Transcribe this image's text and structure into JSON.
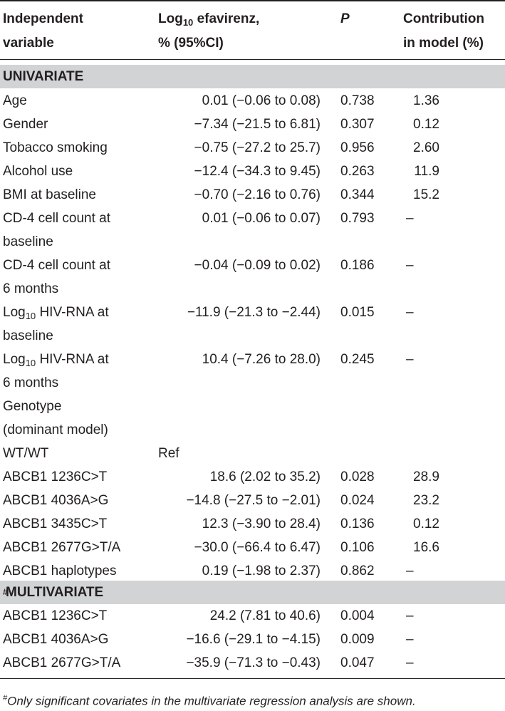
{
  "table": {
    "headers": {
      "col1": [
        "Independent",
        "variable"
      ],
      "col2_line1_base": "Log",
      "col2_line1_sub": "10",
      "col2_line1_rest": " efavirenz,",
      "col2_line2": "% (95%CI)",
      "col3": "P",
      "col4": [
        "Contribution",
        "in model (%)"
      ]
    },
    "sections": {
      "univariate": "UNIVARIATE",
      "multivariate": "MULTIVARIATE",
      "multivariate_mark": "#"
    },
    "univariate_rows": [
      {
        "v": [
          "Age"
        ],
        "est": "0.01 (−0.06 to 0.08)",
        "p": "0.738",
        "c": "1.36"
      },
      {
        "v": [
          "Gender"
        ],
        "est": "−7.34 (−21.5 to 6.81)",
        "p": "0.307",
        "c": "0.12"
      },
      {
        "v": [
          "Tobacco smoking"
        ],
        "est": "−0.75 (−27.2 to 25.7)",
        "p": "0.956",
        "c": "2.60"
      },
      {
        "v": [
          "Alcohol use"
        ],
        "est": "−12.4 (−34.3 to 9.45)",
        "p": "0.263",
        "c": "11.9"
      },
      {
        "v": [
          "BMI at baseline"
        ],
        "est": "−0.70 (−2.16 to 0.76)",
        "p": "0.344",
        "c": "15.2"
      },
      {
        "v": [
          "CD-4 cell count at",
          "baseline"
        ],
        "est": "0.01 (−0.06 to 0.07)",
        "p": "0.793",
        "c": "–"
      },
      {
        "v": [
          "CD-4 cell count at",
          "6 months"
        ],
        "est": "−0.04 (−0.09 to 0.02)",
        "p": "0.186",
        "c": "–"
      },
      {
        "v": [
          "Log10 HIV-RNA at",
          "baseline"
        ],
        "est": "−11.9 (−21.3 to −2.44)",
        "p": "0.015",
        "c": "–"
      },
      {
        "v": [
          "Log10 HIV-RNA at",
          "6 months"
        ],
        "est": "10.4 (−7.26 to 28.0)",
        "p": "0.245",
        "c": "–"
      },
      {
        "v": [
          "Genotype",
          "(dominant model)"
        ],
        "est": "",
        "p": "",
        "c": ""
      },
      {
        "v": [
          "WT/WT"
        ],
        "est": "Ref",
        "p": "",
        "c": ""
      },
      {
        "v": [
          "ABCB1 1236C>T"
        ],
        "est": "18.6 (2.02 to 35.2)",
        "p": "0.028",
        "c": "28.9"
      },
      {
        "v": [
          "ABCB1 4036A>G"
        ],
        "est": "−14.8 (−27.5 to −2.01)",
        "p": "0.024",
        "c": "23.2"
      },
      {
        "v": [
          "ABCB1 3435C>T"
        ],
        "est": "12.3 (−3.90 to 28.4)",
        "p": "0.136",
        "c": "0.12"
      },
      {
        "v": [
          "ABCB1 2677G>T/A"
        ],
        "est": "−30.0 (−66.4 to 6.47)",
        "p": "0.106",
        "c": "16.6"
      },
      {
        "v": [
          "ABCB1 haplotypes"
        ],
        "est": "0.19 (−1.98 to 2.37)",
        "p": "0.862",
        "c": "–"
      }
    ],
    "multivariate_rows": [
      {
        "v": [
          "ABCB1 1236C>T"
        ],
        "est": "24.2 (7.81 to 40.6)",
        "p": "0.004",
        "c": "–"
      },
      {
        "v": [
          "ABCB1 4036A>G"
        ],
        "est": "−16.6 (−29.1 to −4.15)",
        "p": "0.009",
        "c": "–"
      },
      {
        "v": [
          "ABCB1 2677G>T/A"
        ],
        "est": "−35.9 (−71.3 to −0.43)",
        "p": "0.047",
        "c": "–"
      }
    ],
    "footnote_mark": "#",
    "footnote": "Only significant covariates in the multivariate regression analysis are shown."
  }
}
